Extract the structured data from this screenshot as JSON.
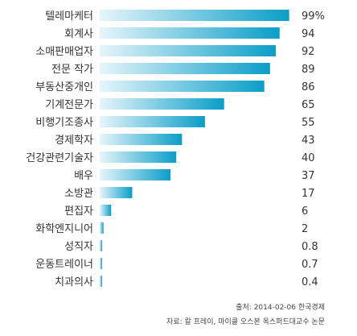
{
  "chart_data": {
    "type": "bar",
    "orientation": "horizontal",
    "categories": [
      "텔레마케터",
      "회계사",
      "소매판매업자",
      "전문 작가",
      "부동산중개인",
      "기계전문가",
      "비행기조종사",
      "경제학자",
      "건강관련기술자",
      "배우",
      "소방관",
      "편집자",
      "화학엔지니어",
      "성직자",
      "운동트레이너",
      "치과의사"
    ],
    "values": [
      99,
      94,
      92,
      89,
      86,
      65,
      55,
      43,
      40,
      37,
      17,
      6,
      2,
      0.8,
      0.7,
      0.4
    ],
    "value_labels": [
      "99%",
      "94",
      "92",
      "89",
      "86",
      "65",
      "55",
      "43",
      "40",
      "37",
      "17",
      "6",
      "2",
      "0.8",
      "0.7",
      "0.4"
    ],
    "xlim": [
      0,
      100
    ],
    "grid": false,
    "legend": "none",
    "bar_gradient": [
      "#e6f5fb",
      "#0a9ec8"
    ]
  },
  "footer": {
    "source": "출처: 2014-02-06 한국경제",
    "reference": "자료: 칼 프레이, 마이클 오스본 옥스퍼드대교수 논문"
  }
}
